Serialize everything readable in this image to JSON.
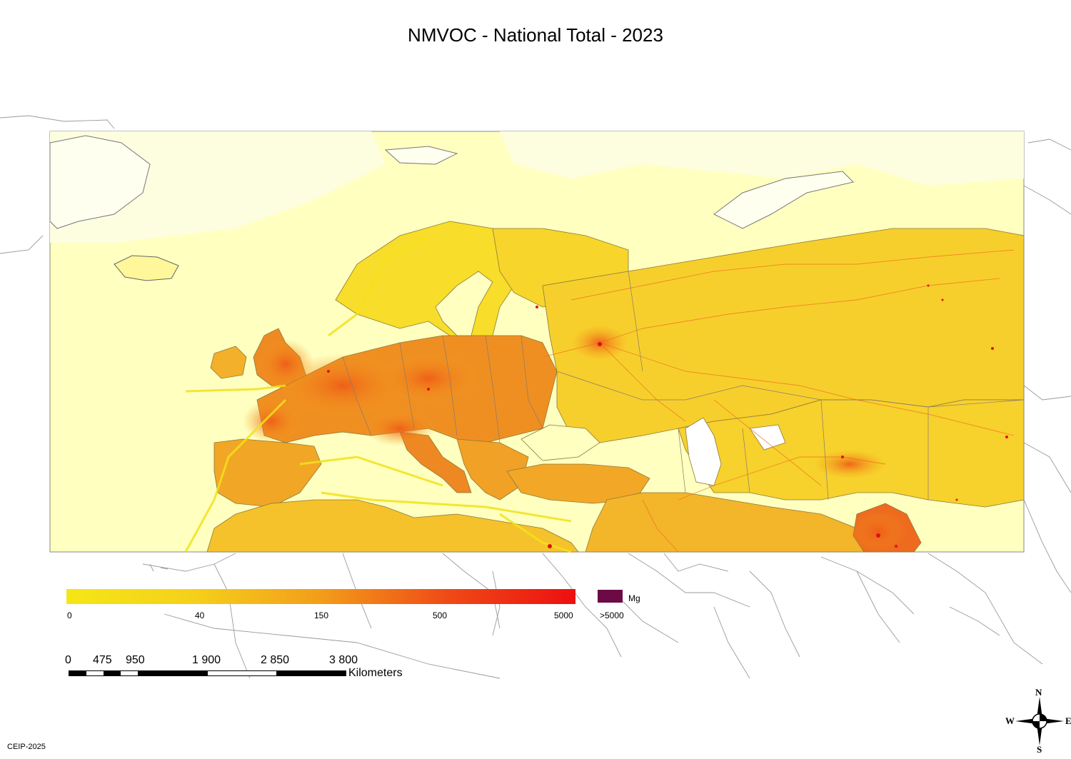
{
  "title": "NMVOC - National Total - 2023",
  "legend": {
    "ticks": [
      "0",
      "40",
      "150",
      "500",
      "5000"
    ],
    "max_label": ">5000",
    "unit": "Mg",
    "colors": {
      "low": "#f5e616",
      "mid": "#f29d1a",
      "high": "#ed0f10",
      "over": "#6b0a45",
      "background": "#ffffc0"
    }
  },
  "scale": {
    "labels": [
      "0",
      "475",
      "950",
      "1 900",
      "2 850",
      "3 800"
    ],
    "unit": "Kilometers"
  },
  "compass": {
    "n": "N",
    "s": "S",
    "e": "E",
    "w": "W"
  },
  "credit": "CEIP-2025"
}
